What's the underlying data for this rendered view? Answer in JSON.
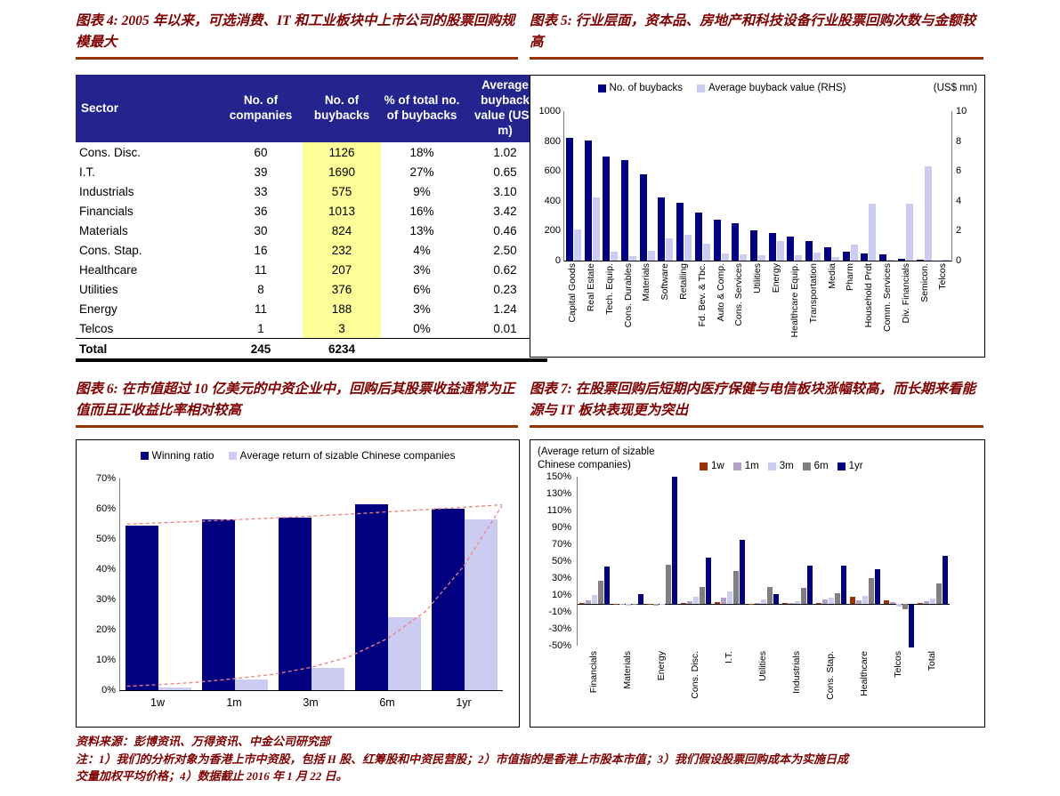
{
  "footer": {
    "source": "资料来源：彭博资讯、万得资讯、中金公司研究部",
    "note_line1": "注：1）我们的分析对象为香港上市中资股，包括 H 股、红筹股和中资民营股；2）市值指的是香港上市股本市值；3）我们假设股票回购成本为实施日成",
    "note_line2": "交量加权平均价格；4）数据截止 2016 年 1 月 22 日。"
  },
  "colors": {
    "title_maroon": "#800000",
    "rule_red": "#993300",
    "table_header_bg": "#24248F",
    "highlight_yellow": "#FFFF99",
    "navy": "#000080",
    "lavender": "#CCCCF2",
    "trendline_pink": "#F08080"
  },
  "chart_data": [
    {
      "type": "table",
      "title": "图表 4: 2005 年以来，可选消费、IT 和工业板块中上市公司的股票回购规模最大",
      "headers": [
        "Sector",
        "No. of companies",
        "No. of buybacks",
        "% of total no. of buybacks",
        "Average buyback value (US$ m)"
      ],
      "rows": [
        [
          "Cons. Disc.",
          "60",
          "1126",
          "18%",
          "1.02"
        ],
        [
          "I.T.",
          "39",
          "1690",
          "27%",
          "0.65"
        ],
        [
          "Industrials",
          "33",
          "575",
          "9%",
          "3.10"
        ],
        [
          "Financials",
          "36",
          "1013",
          "16%",
          "3.42"
        ],
        [
          "Materials",
          "30",
          "824",
          "13%",
          "0.46"
        ],
        [
          "Cons. Stap.",
          "16",
          "232",
          "4%",
          "2.50"
        ],
        [
          "Healthcare",
          "11",
          "207",
          "3%",
          "0.62"
        ],
        [
          "Utilities",
          "8",
          "376",
          "6%",
          "0.23"
        ],
        [
          "Energy",
          "11",
          "188",
          "3%",
          "1.24"
        ],
        [
          "Telcos",
          "1",
          "3",
          "0%",
          "0.01"
        ]
      ],
      "total_row": [
        "Total",
        "245",
        "6234",
        "",
        ""
      ]
    },
    {
      "type": "bar",
      "title": "图表 5: 行业层面，资本品、房地产和科技设备行业股票回购次数与金额较高",
      "unit": "(US$ mn)",
      "categories": [
        "Capital Goods",
        "Real Estate",
        "Tech. Equip.",
        "Cons. Durables",
        "Materials",
        "Software",
        "Retailing",
        "Fd. Bev. & Tbc.",
        "Auto & Comp.",
        "Cons. Services",
        "Utilities",
        "Energy",
        "Healthcare Equip.",
        "Transportation",
        "Media",
        "Pharm",
        "Household Prdt",
        "Comm. Services",
        "Div. Financials",
        "Semicon.",
        "Telcos"
      ],
      "series": [
        {
          "name": "No. of buybacks",
          "axis": "left",
          "color": "#000080",
          "values": [
            820,
            805,
            695,
            675,
            575,
            425,
            388,
            320,
            275,
            252,
            205,
            185,
            160,
            130,
            90,
            60,
            48,
            40,
            13,
            4,
            2
          ]
        },
        {
          "name": "Average buyback value (RHS)",
          "axis": "right",
          "color": "#CCCCF2",
          "values": [
            2.1,
            4.2,
            0.6,
            0.3,
            0.65,
            1.5,
            1.7,
            1.15,
            0.5,
            0.42,
            0.38,
            1.3,
            0.35,
            0.55,
            0.22,
            1.1,
            3.8,
            0.08,
            3.8,
            6.3,
            0.05
          ]
        }
      ],
      "left_axis": {
        "min": 0,
        "max": 1000,
        "tick_labels": [
          "1000",
          "800",
          "600",
          "400",
          "200",
          "0"
        ]
      },
      "right_axis": {
        "min": 0,
        "max": 10,
        "tick_labels": [
          "10",
          "8",
          "6",
          "4",
          "2",
          "0"
        ]
      },
      "legend_position": "top"
    },
    {
      "type": "bar",
      "title": "图表 6: 在市值超过 10 亿美元的中资企业中，回购后其股票收益通常为正值而且正收益比率相对较高",
      "categories": [
        "1w",
        "1m",
        "3m",
        "6m",
        "1yr"
      ],
      "series": [
        {
          "name": "Winning ratio",
          "color": "#000080",
          "values": [
            54.5,
            56.5,
            57,
            61.5,
            60
          ]
        },
        {
          "name": "Average return of sizable Chinese companies",
          "color": "#CCCCF2",
          "values": [
            1,
            3.5,
            7.5,
            24,
            56.5
          ]
        }
      ],
      "y_axis": {
        "min": 0,
        "max": 70,
        "tick_labels": [
          "70%",
          "60%",
          "50%",
          "40%",
          "30%",
          "20%",
          "10%",
          "0%"
        ]
      },
      "trendlines": [
        {
          "style": "dashed",
          "color": "#F08080",
          "points": [
            [
              0.02,
              54.9
            ],
            [
              0.2,
              55.8
            ],
            [
              0.4,
              56.9
            ],
            [
              0.6,
              58.2
            ],
            [
              0.8,
              59.7
            ],
            [
              1.0,
              61.3
            ]
          ]
        },
        {
          "style": "dashed",
          "color": "#F08080",
          "points": [
            [
              0.02,
              1.3
            ],
            [
              0.1,
              1.8
            ],
            [
              0.2,
              2.6
            ],
            [
              0.3,
              3.8
            ],
            [
              0.4,
              5.2
            ],
            [
              0.5,
              7.5
            ],
            [
              0.6,
              11
            ],
            [
              0.7,
              17
            ],
            [
              0.8,
              26
            ],
            [
              0.9,
              41
            ],
            [
              1.0,
              61
            ]
          ]
        }
      ],
      "legend_position": "top"
    },
    {
      "type": "bar",
      "title": "图表 7: 在股票回购后短期内医疗保健与电信板块涨幅较高，而长期来看能源与 IT 板块表现更为突出",
      "note": "(Average return of sizable Chinese companies)",
      "categories": [
        "Financials",
        "Materials",
        "Energy",
        "Cons. Disc.",
        "I.T.",
        "Utilities",
        "Industrials",
        "Cons. Stap.",
        "Healthcare",
        "Telcos",
        "Total"
      ],
      "series": [
        {
          "name": "1w",
          "color": "#993300",
          "values": [
            1,
            -0.5,
            -1,
            1,
            2,
            -1,
            0.5,
            1,
            8,
            4,
            1
          ]
        },
        {
          "name": "1m",
          "color": "#B3A2C7",
          "values": [
            4,
            -2,
            -3,
            3,
            7,
            1,
            1,
            4.5,
            3.5,
            2,
            3
          ]
        },
        {
          "name": "3m",
          "color": "#CCCCF2",
          "values": [
            10,
            -3,
            -2,
            8,
            14,
            4.5,
            3,
            7,
            9,
            -3.5,
            6
          ]
        },
        {
          "name": "6m",
          "color": "#808080",
          "values": [
            27,
            -2,
            46,
            20,
            38,
            20,
            18,
            12,
            30,
            -7,
            24
          ]
        },
        {
          "name": "1yr",
          "color": "#000080",
          "values": [
            44,
            11,
            150,
            54,
            75,
            11,
            45,
            45,
            41,
            -52,
            56
          ]
        }
      ],
      "y_axis": {
        "min": -50,
        "max": 150,
        "tick_labels": [
          "150%",
          "130%",
          "110%",
          "90%",
          "70%",
          "50%",
          "30%",
          "10%",
          "-10%",
          "-30%",
          "-50%"
        ]
      },
      "legend_position": "top-right"
    }
  ]
}
